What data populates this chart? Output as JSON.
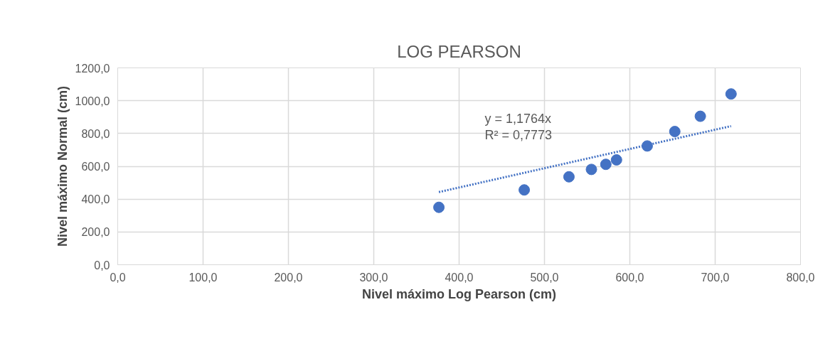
{
  "chart_data": {
    "type": "scatter",
    "title": "LOG PEARSON",
    "xlabel": "Nivel máximo Log Pearson (cm)",
    "ylabel": "Nivel máximo Normal (cm)",
    "x": [
      376.3,
      476.3,
      528.7,
      555.0,
      571.9,
      584.4,
      620.4,
      652.7,
      682.6,
      718.6
    ],
    "series": [
      {
        "color": "#4472c4",
        "values": [
          350,
          456,
          536,
          581,
          612,
          639,
          724,
          812,
          905,
          1041
        ],
        "marker": "circle"
      },
      {
        "type": "line",
        "color": "#4472c4",
        "line_style": "dotted",
        "x": [
          376.3,
          718.6
        ],
        "values": [
          443,
          845
        ]
      }
    ],
    "annotations": [
      "y = 1,1764x",
      "R² = 0,7773"
    ],
    "xlim": [
      0,
      800
    ],
    "ylim": [
      0,
      1200
    ],
    "xticks": [
      {
        "value": 0,
        "label": "0,0"
      },
      {
        "value": 100,
        "label": "100,0"
      },
      {
        "value": 200,
        "label": "200,0"
      },
      {
        "value": 300,
        "label": "300,0"
      },
      {
        "value": 400,
        "label": "400,0"
      },
      {
        "value": 500,
        "label": "500,0"
      },
      {
        "value": 600,
        "label": "600,0"
      },
      {
        "value": 700,
        "label": "700,0"
      },
      {
        "value": 800,
        "label": "800,0"
      }
    ],
    "yticks": [
      {
        "value": 0,
        "label": "0,0"
      },
      {
        "value": 200,
        "label": "200,0"
      },
      {
        "value": 400,
        "label": "400,0"
      },
      {
        "value": 600,
        "label": "600,0"
      },
      {
        "value": 800,
        "label": "800,0"
      },
      {
        "value": 1000,
        "label": "1000,0"
      },
      {
        "value": 1200,
        "label": "1200,0"
      }
    ],
    "grid": true
  }
}
